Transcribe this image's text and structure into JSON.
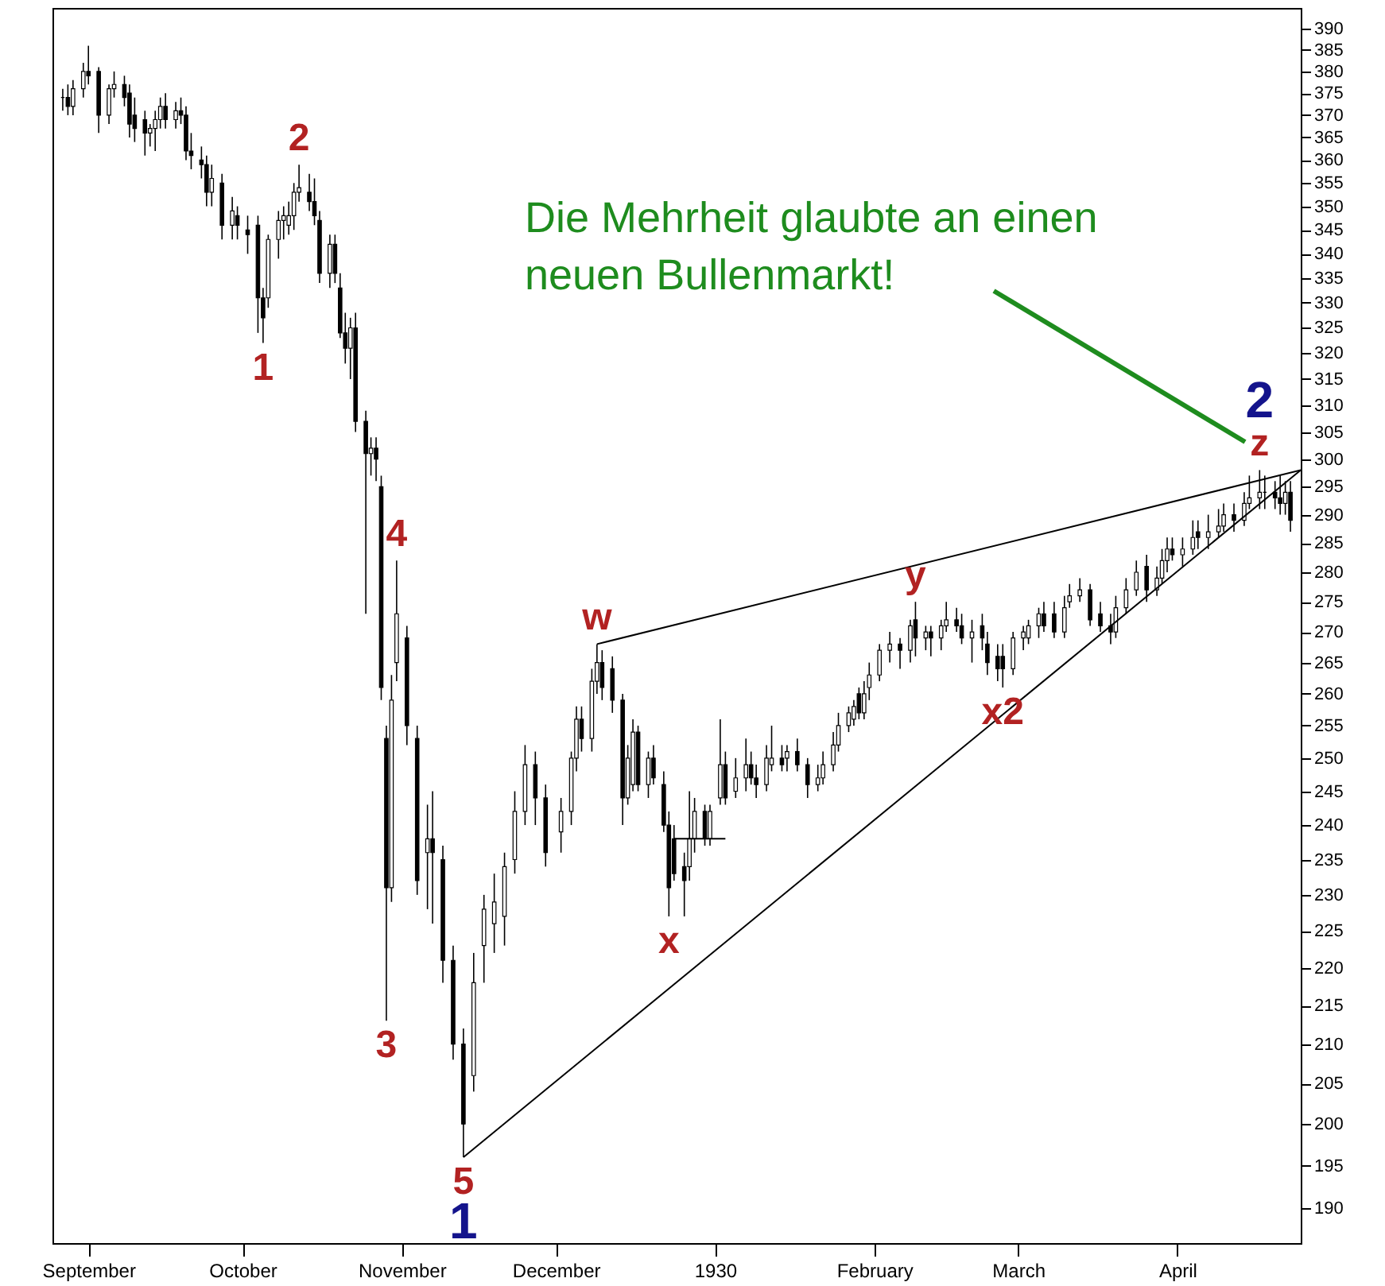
{
  "chart_data": {
    "type": "candlestick",
    "log": true,
    "xlim": [
      "1929-08-25",
      "1930-04-25"
    ],
    "xticks": [
      {
        "value": "1929-09-01",
        "label": "September"
      },
      {
        "value": "1929-10-01",
        "label": "October"
      },
      {
        "value": "1929-11-01",
        "label": "November"
      },
      {
        "value": "1929-12-01",
        "label": "December"
      },
      {
        "value": "1930-01-01",
        "label": "1930"
      },
      {
        "value": "1930-02-01",
        "label": "February"
      },
      {
        "value": "1930-03-01",
        "label": "March"
      },
      {
        "value": "1930-04-01",
        "label": "April"
      }
    ],
    "ylim": [
      186,
      395
    ],
    "yticks": [
      190,
      195,
      200,
      205,
      210,
      215,
      220,
      225,
      230,
      235,
      240,
      245,
      250,
      255,
      260,
      265,
      270,
      275,
      280,
      285,
      290,
      295,
      300,
      305,
      310,
      315,
      320,
      325,
      330,
      335,
      340,
      345,
      350,
      355,
      360,
      365,
      370,
      375,
      380,
      385,
      390
    ],
    "x": [
      "1929-08-27",
      "1929-08-28",
      "1929-08-29",
      "1929-08-31",
      "1929-09-01",
      "1929-09-03",
      "1929-09-05",
      "1929-09-06",
      "1929-09-08",
      "1929-09-09",
      "1929-09-10",
      "1929-09-12",
      "1929-09-13",
      "1929-09-14",
      "1929-09-15",
      "1929-09-16",
      "1929-09-18",
      "1929-09-19",
      "1929-09-20",
      "1929-09-21",
      "1929-09-23",
      "1929-09-24",
      "1929-09-25",
      "1929-09-27",
      "1929-09-29",
      "1929-09-30",
      "1929-10-02",
      "1929-10-04",
      "1929-10-05",
      "1929-10-06",
      "1929-10-08",
      "1929-10-09",
      "1929-10-10",
      "1929-10-11",
      "1929-10-12",
      "1929-10-14",
      "1929-10-15",
      "1929-10-16",
      "1929-10-18",
      "1929-10-19",
      "1929-10-20",
      "1929-10-21",
      "1929-10-22",
      "1929-10-23",
      "1929-10-25",
      "1929-10-26",
      "1929-10-27",
      "1929-10-28",
      "1929-10-29",
      "1929-10-30",
      "1929-10-31",
      "1929-11-02",
      "1929-11-04",
      "1929-11-06",
      "1929-11-07",
      "1929-11-09",
      "1929-11-11",
      "1929-11-13",
      "1929-11-15",
      "1929-11-17",
      "1929-11-19",
      "1929-11-21",
      "1929-11-23",
      "1929-11-25",
      "1929-11-27",
      "1929-11-29",
      "1929-12-02",
      "1929-12-04",
      "1929-12-05",
      "1929-12-06",
      "1929-12-08",
      "1929-12-09",
      "1929-12-10",
      "1929-12-12",
      "1929-12-14",
      "1929-12-15",
      "1929-12-16",
      "1929-12-17",
      "1929-12-19",
      "1929-12-20",
      "1929-12-22",
      "1929-12-23",
      "1929-12-24",
      "1929-12-26",
      "1929-12-27",
      "1929-12-28",
      "1929-12-30",
      "1929-12-31",
      "1930-01-02",
      "1930-01-03",
      "1930-01-05",
      "1930-01-07",
      "1930-01-08",
      "1930-01-09",
      "1930-01-11",
      "1930-01-12",
      "1930-01-14",
      "1930-01-15",
      "1930-01-17",
      "1930-01-19",
      "1930-01-21",
      "1930-01-22",
      "1930-01-24",
      "1930-01-25",
      "1930-01-27",
      "1930-01-28",
      "1930-01-29",
      "1930-01-30",
      "1930-01-31",
      "1930-02-02",
      "1930-02-04",
      "1930-02-06",
      "1930-02-08",
      "1930-02-09",
      "1930-02-11",
      "1930-02-12",
      "1930-02-14",
      "1930-02-15",
      "1930-02-17",
      "1930-02-18",
      "1930-02-20",
      "1930-02-22",
      "1930-02-23",
      "1930-02-25",
      "1930-02-26",
      "1930-02-28",
      "1930-03-02",
      "1930-03-03",
      "1930-03-05",
      "1930-03-06",
      "1930-03-08",
      "1930-03-10",
      "1930-03-11",
      "1930-03-13",
      "1930-03-15",
      "1930-03-17",
      "1930-03-19",
      "1930-03-20",
      "1930-03-22",
      "1930-03-24",
      "1930-03-26",
      "1930-03-28",
      "1930-03-29",
      "1930-03-30",
      "1930-03-31",
      "1930-04-02",
      "1930-04-04",
      "1930-04-05",
      "1930-04-07",
      "1930-04-09",
      "1930-04-10",
      "1930-04-12",
      "1930-04-14",
      "1930-04-15",
      "1930-04-17",
      "1930-04-18",
      "1930-04-20",
      "1930-04-21",
      "1930-04-22",
      "1930-04-23"
    ],
    "ohlc": [
      [
        374,
        376,
        371,
        374
      ],
      [
        374,
        377,
        370,
        372
      ],
      [
        372,
        378,
        370,
        376
      ],
      [
        376,
        382,
        374,
        380
      ],
      [
        380,
        386,
        377,
        379
      ],
      [
        380,
        381,
        366,
        370
      ],
      [
        370,
        377,
        368,
        376
      ],
      [
        376,
        380,
        374,
        377
      ],
      [
        377,
        379,
        372,
        374
      ],
      [
        375,
        377,
        365,
        368
      ],
      [
        370,
        374,
        364,
        367
      ],
      [
        369,
        371,
        361,
        366
      ],
      [
        366,
        368,
        363,
        367
      ],
      [
        367,
        371,
        362,
        369
      ],
      [
        369,
        374,
        367,
        372
      ],
      [
        372,
        375,
        367,
        369
      ],
      [
        369,
        373,
        367,
        371
      ],
      [
        371,
        374,
        368,
        370
      ],
      [
        370,
        372,
        360,
        362
      ],
      [
        362,
        366,
        358,
        361
      ],
      [
        360,
        363,
        356,
        359
      ],
      [
        359,
        361,
        350,
        353
      ],
      [
        353,
        359,
        350,
        356
      ],
      [
        355,
        357,
        343,
        346
      ],
      [
        346,
        352,
        343,
        349
      ],
      [
        348,
        350,
        343,
        346
      ],
      [
        345,
        348,
        340,
        344
      ],
      [
        346,
        348,
        324,
        331
      ],
      [
        331,
        333,
        322,
        327
      ],
      [
        331,
        344,
        329,
        343
      ],
      [
        343,
        349,
        339,
        347
      ],
      [
        347,
        350,
        343,
        348
      ],
      [
        346,
        351,
        344,
        348
      ],
      [
        348,
        355,
        345,
        353
      ],
      [
        353,
        359,
        351,
        354
      ],
      [
        353,
        357,
        349,
        351
      ],
      [
        351,
        356,
        346,
        348
      ],
      [
        347,
        349,
        334,
        336
      ],
      [
        336,
        344,
        333,
        342
      ],
      [
        342,
        344,
        334,
        336
      ],
      [
        333,
        336,
        323,
        324
      ],
      [
        324,
        328,
        318,
        321
      ],
      [
        321,
        327,
        315,
        325
      ],
      [
        325,
        328,
        305,
        307
      ],
      [
        307,
        309,
        273,
        301
      ],
      [
        301,
        304,
        297,
        302
      ],
      [
        302,
        304,
        296,
        300
      ],
      [
        295,
        297,
        259,
        261
      ],
      [
        253,
        255,
        213,
        231
      ],
      [
        231,
        263,
        229,
        259
      ],
      [
        265,
        282,
        262,
        273
      ],
      [
        269,
        271,
        252,
        255
      ],
      [
        253,
        255,
        230,
        232
      ],
      [
        236,
        243,
        228,
        238
      ],
      [
        238,
        245,
        226,
        236
      ],
      [
        235,
        237,
        218,
        221
      ],
      [
        221,
        223,
        208,
        210
      ],
      [
        210,
        212,
        196,
        200
      ],
      [
        206,
        222,
        204,
        218
      ],
      [
        223,
        230,
        218,
        228
      ],
      [
        226,
        233,
        222,
        229
      ],
      [
        227,
        236,
        223,
        234
      ],
      [
        235,
        245,
        233,
        242
      ],
      [
        242,
        252,
        240,
        249
      ],
      [
        249,
        251,
        240,
        244
      ],
      [
        244,
        246,
        234,
        236
      ],
      [
        239,
        244,
        236,
        242
      ],
      [
        242,
        251,
        240,
        250
      ],
      [
        250,
        258,
        248,
        256
      ],
      [
        256,
        258,
        251,
        253
      ],
      [
        253,
        264,
        251,
        262
      ],
      [
        262,
        268,
        260,
        265
      ],
      [
        265,
        267,
        259,
        261
      ],
      [
        264,
        266,
        257,
        259
      ],
      [
        259,
        260,
        240,
        244
      ],
      [
        244,
        252,
        243,
        250
      ],
      [
        246,
        256,
        245,
        254
      ],
      [
        254,
        255,
        245,
        246
      ],
      [
        246,
        251,
        244,
        250
      ],
      [
        250,
        252,
        246,
        247
      ],
      [
        246,
        248,
        239,
        240
      ],
      [
        240,
        242,
        227,
        231
      ],
      [
        238,
        240,
        232,
        233
      ],
      [
        234,
        236,
        227,
        232
      ],
      [
        234,
        245,
        232,
        238
      ],
      [
        238,
        244,
        236,
        242
      ],
      [
        242,
        243,
        237,
        238
      ],
      [
        238,
        243,
        237,
        242
      ],
      [
        244,
        256,
        243,
        249
      ],
      [
        249,
        251,
        243,
        244
      ],
      [
        245,
        250,
        244,
        247
      ],
      [
        247,
        253,
        245,
        249
      ],
      [
        249,
        251,
        246,
        247
      ],
      [
        247,
        249,
        244,
        246
      ],
      [
        246,
        252,
        245,
        250
      ],
      [
        249,
        255,
        248,
        250
      ],
      [
        250,
        252,
        248,
        249
      ],
      [
        250,
        252,
        248,
        251
      ],
      [
        251,
        253,
        248,
        249
      ],
      [
        249,
        250,
        244,
        246
      ],
      [
        246,
        249,
        245,
        247
      ],
      [
        247,
        251,
        246,
        249
      ],
      [
        249,
        254,
        248,
        252
      ],
      [
        252,
        257,
        251,
        255
      ],
      [
        255,
        258,
        254,
        257
      ],
      [
        256,
        259,
        255,
        258
      ],
      [
        260,
        261,
        256,
        257
      ],
      [
        257,
        262,
        256,
        260
      ],
      [
        261,
        265,
        259,
        263
      ],
      [
        263,
        268,
        262,
        267
      ],
      [
        267,
        270,
        265,
        268
      ],
      [
        268,
        269,
        264,
        267
      ],
      [
        267,
        272,
        265,
        271
      ],
      [
        272,
        275,
        266,
        269
      ],
      [
        269,
        271,
        267,
        270
      ],
      [
        270,
        271,
        266,
        269
      ],
      [
        269,
        272,
        267,
        271
      ],
      [
        271,
        275,
        270,
        272
      ],
      [
        272,
        274,
        270,
        271
      ],
      [
        271,
        273,
        268,
        269
      ],
      [
        269,
        272,
        265,
        270
      ],
      [
        271,
        273,
        267,
        269
      ],
      [
        268,
        270,
        263,
        265
      ],
      [
        266,
        268,
        262,
        264
      ],
      [
        266,
        268,
        261,
        264
      ],
      [
        264,
        270,
        263,
        269
      ],
      [
        269,
        271,
        267,
        270
      ],
      [
        269,
        272,
        268,
        271
      ],
      [
        271,
        274,
        269,
        273
      ],
      [
        273,
        275,
        270,
        271
      ],
      [
        273,
        275,
        269,
        270
      ],
      [
        270,
        276,
        269,
        274
      ],
      [
        275,
        278,
        274,
        276
      ],
      [
        276,
        279,
        275,
        277
      ],
      [
        277,
        278,
        271,
        272
      ],
      [
        273,
        275,
        270,
        271
      ],
      [
        271,
        273,
        268,
        270
      ],
      [
        270,
        276,
        269,
        274
      ],
      [
        274,
        279,
        273,
        277
      ],
      [
        277,
        282,
        276,
        280
      ],
      [
        281,
        283,
        275,
        277
      ],
      [
        277,
        281,
        276,
        279
      ],
      [
        279,
        284,
        278,
        282
      ],
      [
        282,
        286,
        280,
        284
      ],
      [
        284,
        286,
        282,
        283
      ],
      [
        283,
        286,
        281,
        284
      ],
      [
        284,
        289,
        283,
        286
      ],
      [
        287,
        289,
        284,
        286
      ],
      [
        286,
        290,
        284,
        287
      ],
      [
        287,
        291,
        286,
        288
      ],
      [
        288,
        292,
        287,
        290
      ],
      [
        290,
        292,
        287,
        289
      ],
      [
        289,
        294,
        288,
        292
      ],
      [
        292,
        297,
        291,
        293
      ],
      [
        293,
        298,
        291,
        294
      ],
      [
        294,
        297,
        291,
        294
      ],
      [
        294,
        296,
        291,
        293
      ],
      [
        293,
        297,
        290,
        292
      ],
      [
        292,
        296,
        290,
        294
      ],
      [
        294,
        296,
        287,
        289
      ]
    ],
    "series": [
      {
        "type": "line",
        "color": "#000000",
        "x": [
          "1929-12-09",
          "1930-04-25"
        ],
        "values": [
          268,
          298
        ]
      },
      {
        "type": "line",
        "color": "#000000",
        "x": [
          "1929-11-13",
          "1930-04-25"
        ],
        "values": [
          196,
          298
        ]
      },
      {
        "type": "line",
        "color": "#000000",
        "x": [
          "1929-12-24",
          "1930-01-03"
        ],
        "values": [
          238,
          238
        ]
      }
    ],
    "annotations": [
      {
        "text": "1",
        "x": "1929-10-05",
        "y": 322
      },
      {
        "text": "2",
        "x": "1929-10-12",
        "y": 359
      },
      {
        "text": "3",
        "x": "1929-10-29",
        "y": 213
      },
      {
        "text": "4",
        "x": "1929-10-31",
        "y": 282
      },
      {
        "text": "5",
        "x": "1929-11-13",
        "y": 196
      },
      {
        "text": "1",
        "x": "1929-11-13",
        "y": 196
      },
      {
        "text": "w",
        "x": "1929-12-09",
        "y": 268
      },
      {
        "text": "x",
        "x": "1929-12-23",
        "y": 227
      },
      {
        "text": "y",
        "x": "1930-02-09",
        "y": 275
      },
      {
        "text": "x2",
        "x": "1930-02-26",
        "y": 261
      },
      {
        "text": "z",
        "x": "1930-04-17",
        "y": 298
      },
      {
        "text": "2",
        "x": "1930-04-17",
        "y": 298
      },
      "Die Mehrheit glaubte an einen neuen Bullenmarkt!"
    ]
  }
}
